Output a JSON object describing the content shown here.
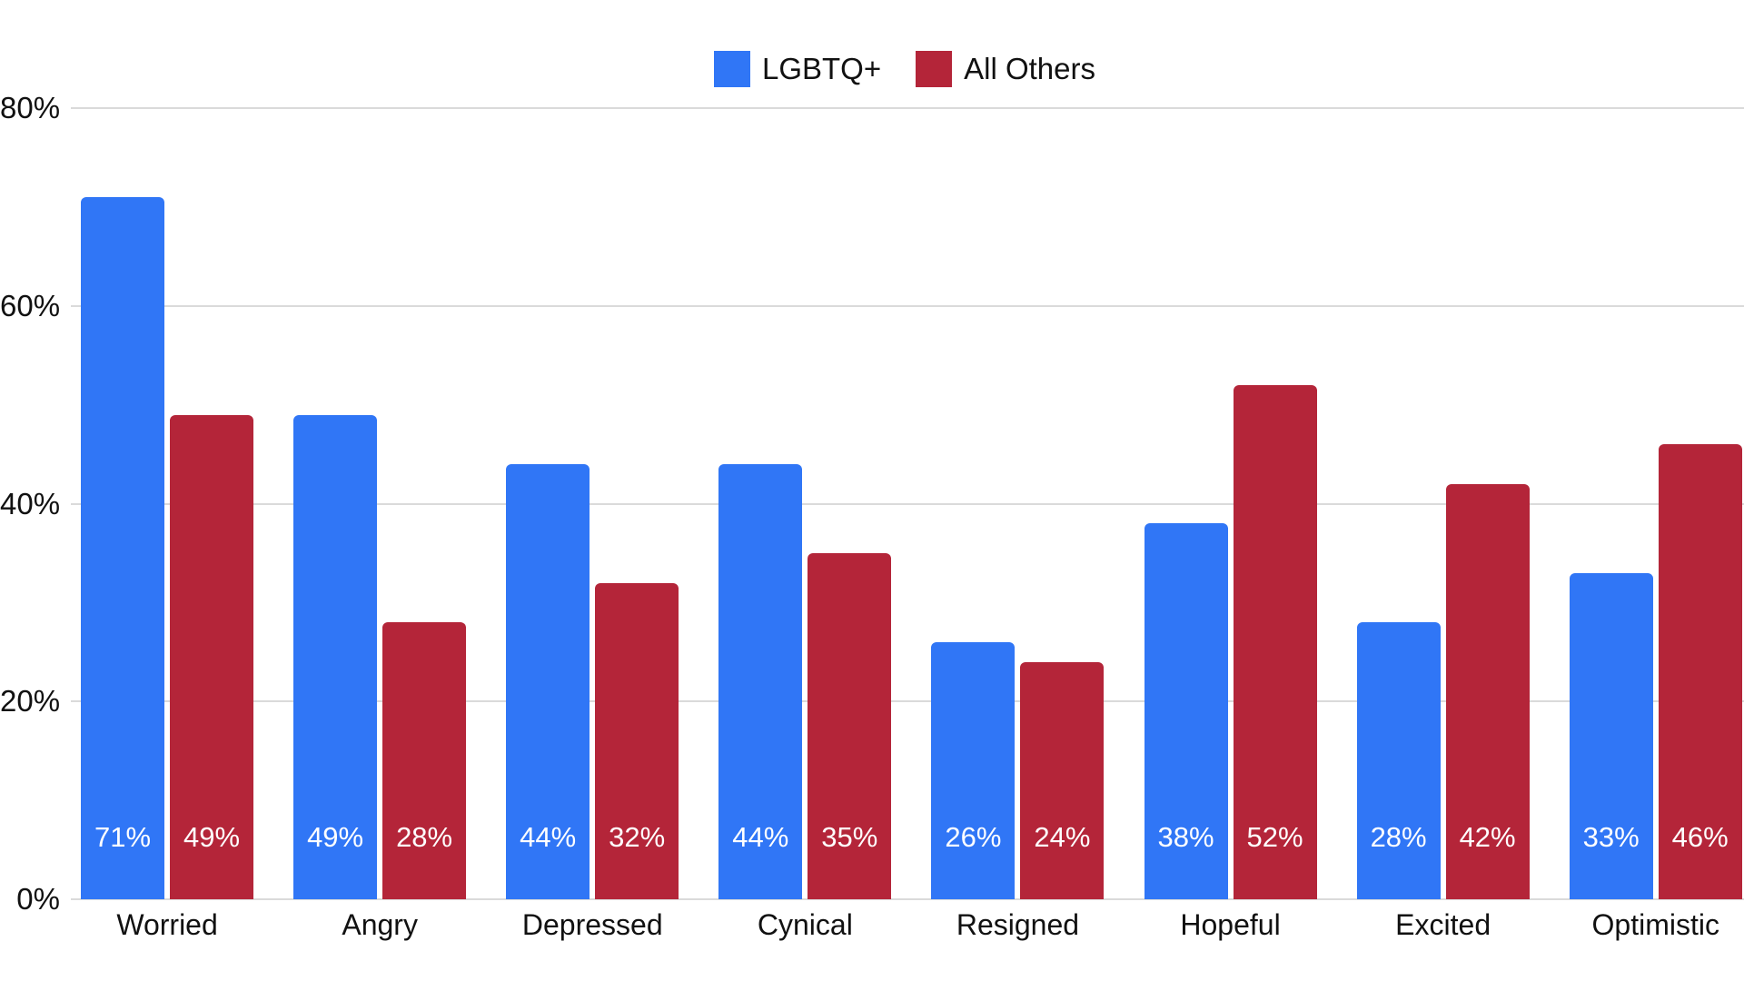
{
  "chart_data": {
    "type": "bar",
    "title": "",
    "categories": [
      "Worried",
      "Angry",
      "Depressed",
      "Cynical",
      "Resigned",
      "Hopeful",
      "Excited",
      "Optimistic"
    ],
    "series": [
      {
        "name": "LGBTQ+",
        "color": "#3076F6",
        "values": [
          71,
          49,
          44,
          44,
          26,
          38,
          28,
          33
        ]
      },
      {
        "name": "All Others",
        "color": "#B42539",
        "values": [
          49,
          28,
          32,
          35,
          24,
          52,
          42,
          46
        ]
      }
    ],
    "value_labels": {
      "visible": true,
      "suffix": "%",
      "color": "#FFFFFF",
      "position": "inside-bottom"
    },
    "y_axis": {
      "min": 0,
      "max": 80,
      "ticks": [
        0,
        20,
        40,
        60,
        80
      ],
      "tick_suffix": "%"
    },
    "grid": true,
    "legend_position": "top-center",
    "colors": {
      "background": "#FFFFFF",
      "grid": "#DADADA",
      "axis_text": "#111111"
    }
  }
}
